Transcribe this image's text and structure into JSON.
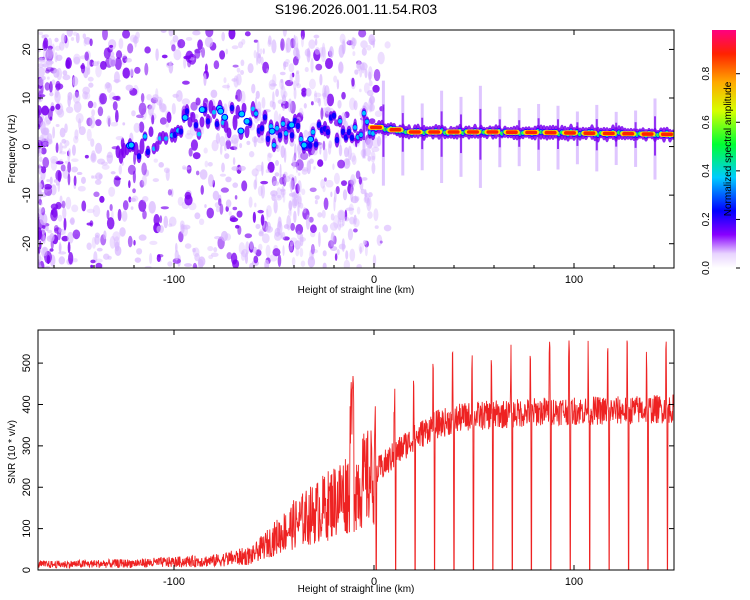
{
  "title": "S196.2026.001.11.54.R03",
  "chart_data": [
    {
      "type": "heatmap",
      "xlabel": "Height of straight line (km)",
      "ylabel": "Frequency (Hz)",
      "xlim": [
        -168,
        150
      ],
      "ylim": [
        -25,
        24
      ],
      "xticks": [
        -100,
        0,
        100
      ],
      "yticks": [
        -20,
        -10,
        0,
        10,
        20
      ],
      "colorbar": {
        "label": "Normalized spectral amplitude",
        "range": [
          0,
          0.98
        ],
        "ticks": [
          0.0,
          0.2,
          0.4,
          0.6,
          0.8
        ]
      },
      "ridge": [
        {
          "x": -125,
          "y": 0
        },
        {
          "x": -110,
          "y": 2
        },
        {
          "x": -95,
          "y": 5
        },
        {
          "x": -80,
          "y": 6
        },
        {
          "x": -60,
          "y": 5
        },
        {
          "x": -45,
          "y": 2
        },
        {
          "x": -30,
          "y": 3
        },
        {
          "x": -15,
          "y": 4
        },
        {
          "x": -5,
          "y": 4
        },
        {
          "x": 0,
          "y": 4
        },
        {
          "x": 20,
          "y": 3
        },
        {
          "x": 60,
          "y": 3
        },
        {
          "x": 100,
          "y": 2.8
        },
        {
          "x": 150,
          "y": 2.5
        }
      ]
    },
    {
      "type": "line",
      "xlabel": "Height of straight line (km)",
      "ylabel": "SNR (10 * v/v)",
      "xlim": [
        -168,
        150
      ],
      "ylim": [
        0,
        580
      ],
      "xticks": [
        -100,
        0,
        100
      ],
      "yticks": [
        0,
        100,
        200,
        300,
        400,
        500
      ],
      "color": "#ee2222",
      "series_summary": [
        {
          "x": -160,
          "y": 15
        },
        {
          "x": -120,
          "y": 18
        },
        {
          "x": -80,
          "y": 25
        },
        {
          "x": -60,
          "y": 40
        },
        {
          "x": -40,
          "y": 110
        },
        {
          "x": -25,
          "y": 150
        },
        {
          "x": -10,
          "y": 200
        },
        {
          "x": 0,
          "y": 230
        },
        {
          "x": 15,
          "y": 300
        },
        {
          "x": 30,
          "y": 350
        },
        {
          "x": 45,
          "y": 370
        },
        {
          "x": 60,
          "y": 375
        },
        {
          "x": 90,
          "y": 385
        },
        {
          "x": 120,
          "y": 385
        },
        {
          "x": 150,
          "y": 390
        }
      ]
    }
  ]
}
